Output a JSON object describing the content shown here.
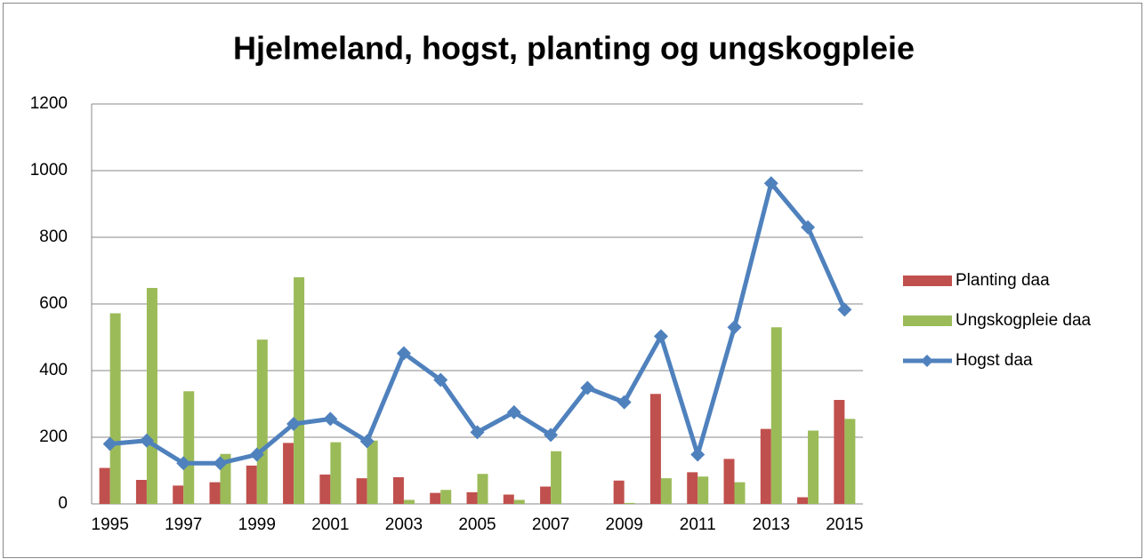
{
  "chart_data": {
    "type": "bar_line",
    "title": "Hjelmeland, hogst, planting og ungskogpleie",
    "categories": [
      "1995",
      null,
      "1997",
      null,
      "1999",
      null,
      "2001",
      null,
      "2003",
      null,
      "2005",
      null,
      "2007",
      null,
      "2009",
      null,
      "2011",
      null,
      "2013",
      null,
      "2015"
    ],
    "series": [
      {
        "name": "Planting  daa",
        "color": "#c0504d",
        "type": "bar",
        "values": [
          108,
          72,
          55,
          65,
          115,
          183,
          88,
          77,
          80,
          33,
          35,
          28,
          52,
          0,
          70,
          330,
          95,
          135,
          225,
          20,
          312
        ]
      },
      {
        "name": "Ungskogpleie daa",
        "color": "#9bbb59",
        "type": "bar",
        "values": [
          572,
          648,
          338,
          150,
          493,
          680,
          185,
          190,
          12,
          42,
          90,
          12,
          158,
          0,
          3,
          77,
          82,
          65,
          530,
          220,
          255
        ]
      },
      {
        "name": "Hogst daa",
        "color": "#4f81bd",
        "type": "line",
        "values": [
          180,
          190,
          122,
          122,
          148,
          240,
          255,
          188,
          452,
          372,
          215,
          275,
          207,
          348,
          305,
          503,
          148,
          530,
          962,
          830,
          583
        ]
      }
    ],
    "ylim": [
      0,
      1200
    ],
    "yticks": [
      0,
      200,
      400,
      600,
      800,
      1000,
      1200
    ],
    "grid": true,
    "legend": "right"
  }
}
